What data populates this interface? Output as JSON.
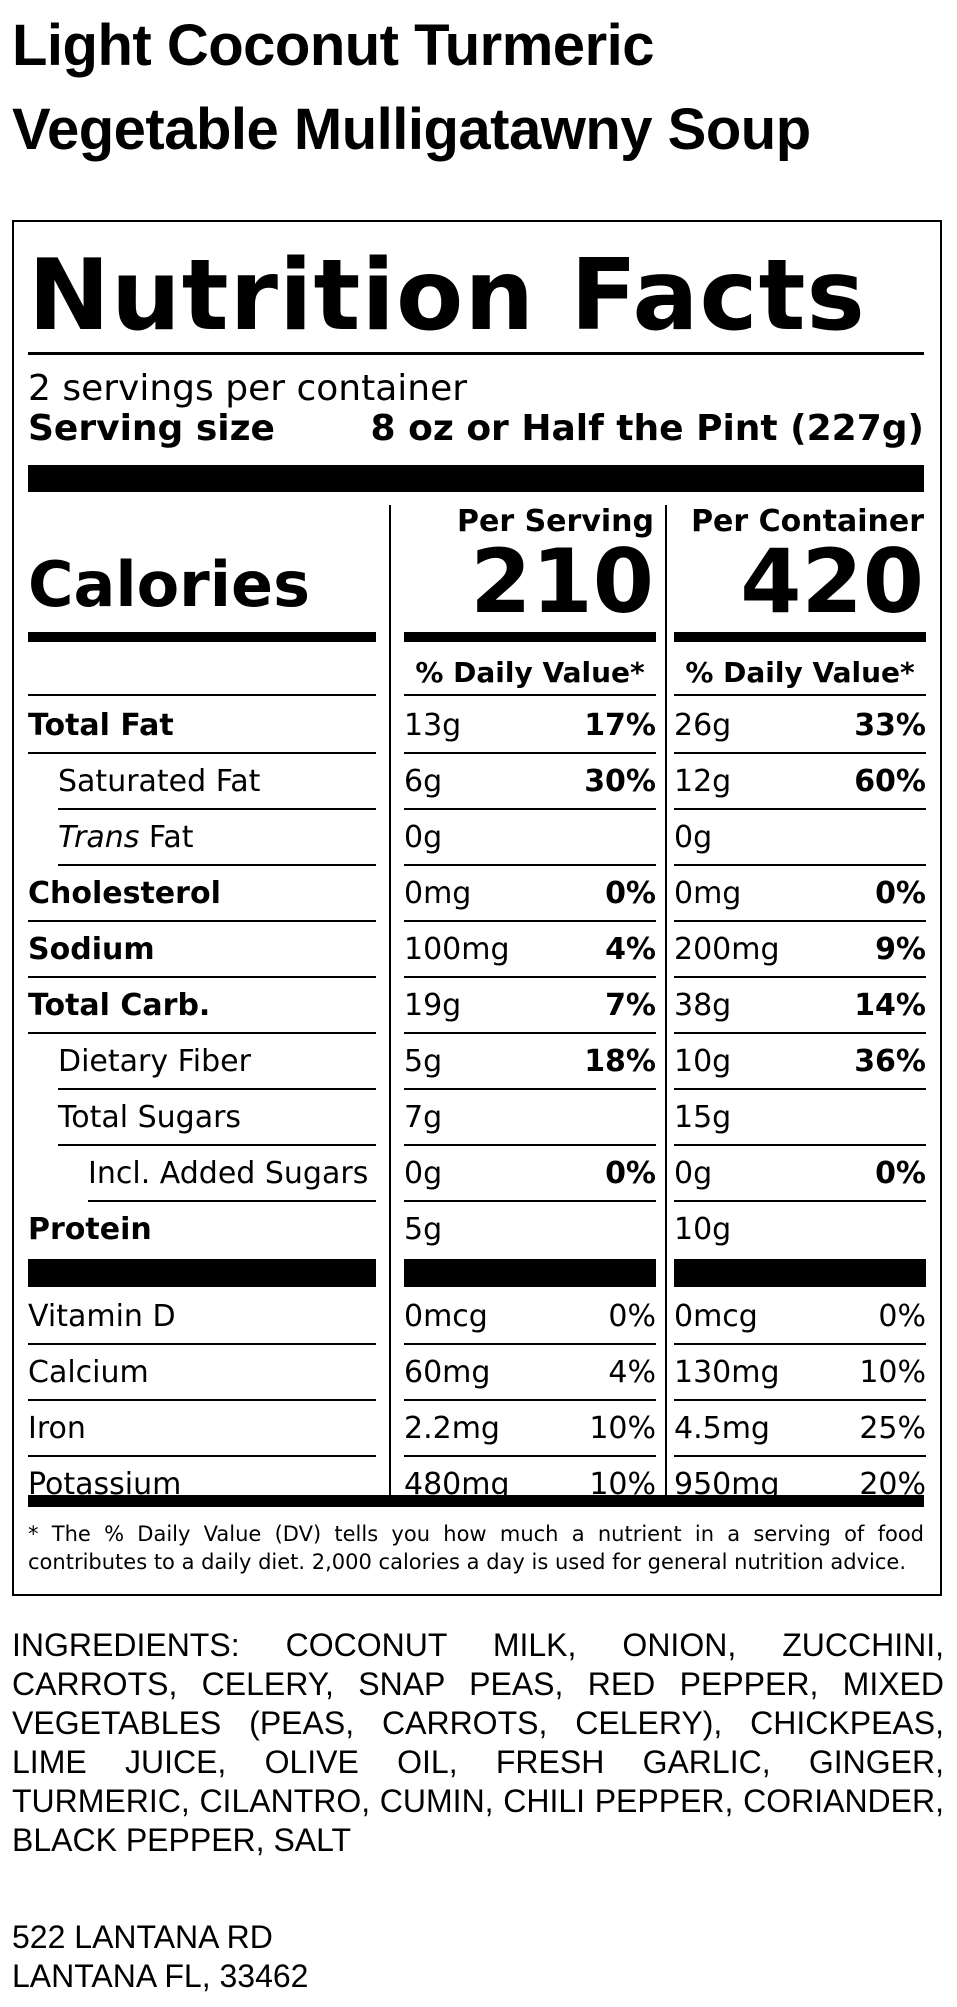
{
  "product": {
    "name_line1": "Light Coconut Turmeric",
    "name_line2": "Vegetable Mulligatawny Soup"
  },
  "label": {
    "heading": "Nutrition Facts",
    "servings_per_container": "2 servings per container",
    "serving_size_label": "Serving size",
    "serving_size_value": "8 oz or Half the Pint (227g)",
    "per_serving_header": "Per Serving",
    "per_container_header": "Per Container",
    "calories_label": "Calories",
    "calories_per_serving": "210",
    "calories_per_container": "420",
    "daily_value_header": "% Daily Value*",
    "rows": [
      {
        "name": "Total Fat",
        "style": "bold",
        "indent": 0,
        "serving_amount": "13g",
        "serving_dv": "17%",
        "container_amount": "26g",
        "container_dv": "33%",
        "dv_bold": true
      },
      {
        "name": "Saturated Fat",
        "style": "normal",
        "indent": 1,
        "serving_amount": "6g",
        "serving_dv": "30%",
        "container_amount": "12g",
        "container_dv": "60%",
        "dv_bold": true
      },
      {
        "name_italic": "Trans",
        "name_rest": " Fat",
        "style": "trans",
        "indent": 1,
        "serving_amount": "0g",
        "serving_dv": "",
        "container_amount": "0g",
        "container_dv": "",
        "dv_bold": true
      },
      {
        "name": "Cholesterol",
        "style": "bold",
        "indent": 0,
        "serving_amount": "0mg",
        "serving_dv": "0%",
        "container_amount": "0mg",
        "container_dv": "0%",
        "dv_bold": true
      },
      {
        "name": "Sodium",
        "style": "bold",
        "indent": 0,
        "serving_amount": "100mg",
        "serving_dv": "4%",
        "container_amount": "200mg",
        "container_dv": "9%",
        "dv_bold": true
      },
      {
        "name": "Total Carb.",
        "style": "bold",
        "indent": 0,
        "serving_amount": "19g",
        "serving_dv": "7%",
        "container_amount": "38g",
        "container_dv": "14%",
        "dv_bold": true
      },
      {
        "name": "Dietary Fiber",
        "style": "normal",
        "indent": 1,
        "serving_amount": "5g",
        "serving_dv": "18%",
        "container_amount": "10g",
        "container_dv": "36%",
        "dv_bold": true
      },
      {
        "name": "Total Sugars",
        "style": "normal",
        "indent": 1,
        "serving_amount": "7g",
        "serving_dv": "",
        "container_amount": "15g",
        "container_dv": "",
        "dv_bold": true
      },
      {
        "name": "Incl. Added Sugars",
        "style": "normal",
        "indent": 2,
        "serving_amount": "0g",
        "serving_dv": "0%",
        "container_amount": "0g",
        "container_dv": "0%",
        "dv_bold": true
      },
      {
        "name": "Protein",
        "style": "bold",
        "indent": 0,
        "serving_amount": "5g",
        "serving_dv": "",
        "container_amount": "10g",
        "container_dv": "",
        "dv_bold": true
      }
    ],
    "micros": [
      {
        "name": "Vitamin D",
        "serving_amount": "0mcg",
        "serving_dv": "0%",
        "container_amount": "0mcg",
        "container_dv": "0%"
      },
      {
        "name": "Calcium",
        "serving_amount": "60mg",
        "serving_dv": "4%",
        "container_amount": "130mg",
        "container_dv": "10%"
      },
      {
        "name": "Iron",
        "serving_amount": "2.2mg",
        "serving_dv": "10%",
        "container_amount": "4.5mg",
        "container_dv": "25%"
      },
      {
        "name": "Potassium",
        "serving_amount": "480mg",
        "serving_dv": "10%",
        "container_amount": "950mg",
        "container_dv": "20%"
      }
    ],
    "footnote": "* The % Daily Value (DV) tells you how much a nutrient in a serving of food contributes to a daily diet. 2,000 calories a day is used for general nutrition advice."
  },
  "ingredients": "INGREDIENTS: COCONUT MILK, ONION, ZUCCHINI, CARROTS, CELERY, SNAP PEAS, RED PEPPER, MIXED VEGETABLES (PEAS, CARROTS, CELERY), CHICKPEAS, LIME JUICE, OLIVE OIL, FRESH GARLIC, GINGER, TURMERIC, CILANTRO, CUMIN, CHILI PEPPER, CORIANDER, BLACK PEPPER, SALT",
  "address": {
    "line1": "522 LANTANA RD",
    "line2": "LANTANA FL, 33462"
  }
}
